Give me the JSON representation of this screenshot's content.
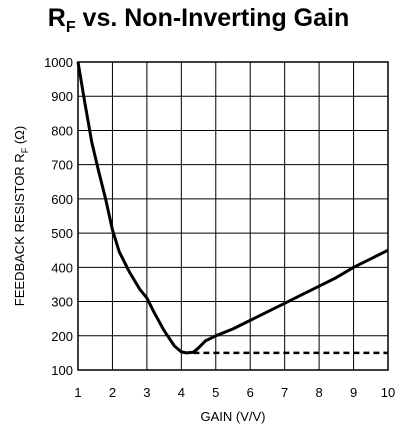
{
  "chart_data": {
    "type": "line",
    "title": {
      "main": "R",
      "sub": "F",
      "rest": " vs. Non-Inverting Gain"
    },
    "xlabel": "GAIN (V/V)",
    "ylabel": {
      "main": "FEEDBACK RESISTOR R",
      "sub": "F",
      "rest": " (Ω)"
    },
    "xlim": [
      1,
      10
    ],
    "ylim": [
      100,
      1000
    ],
    "xticks": [
      "1",
      "2",
      "3",
      "4",
      "5",
      "6",
      "7",
      "8",
      "9",
      "10"
    ],
    "yticks": [
      "1000",
      "900",
      "800",
      "700",
      "600",
      "500",
      "400",
      "300",
      "200",
      "100"
    ],
    "grid": true,
    "series": [
      {
        "style": "solid",
        "color": "#000000",
        "x": [
          1.0,
          1.2,
          1.4,
          1.6,
          1.8,
          2.0,
          2.2,
          2.5,
          2.8,
          3.0,
          3.2,
          3.5,
          3.8,
          4.0,
          4.15,
          4.35,
          4.5,
          4.7,
          5.0,
          5.5,
          6.0,
          6.5,
          7.0,
          7.5,
          8.0,
          8.5,
          9.0,
          9.5,
          10.0
        ],
        "y": [
          1000,
          880,
          765,
          680,
          600,
          510,
          445,
          385,
          335,
          310,
          270,
          215,
          170,
          153,
          150,
          152,
          165,
          185,
          200,
          220,
          245,
          270,
          295,
          320,
          345,
          370,
          400,
          425,
          450
        ]
      },
      {
        "style": "dashed",
        "color": "#000000",
        "x": [
          4.35,
          10.0
        ],
        "y": [
          150,
          150
        ]
      }
    ]
  }
}
